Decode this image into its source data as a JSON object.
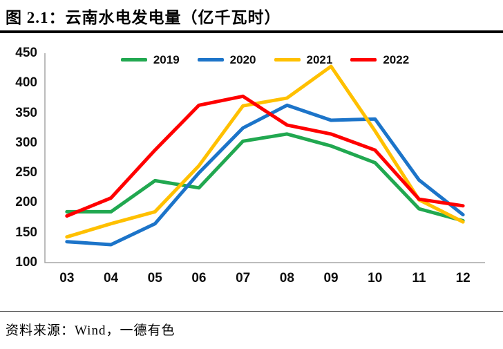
{
  "header": {
    "title": "图 2.1：云南水电发电量（亿千瓦时）"
  },
  "footer": {
    "source": "资料来源：Wind，一德有色"
  },
  "chart_data": {
    "type": "line",
    "title": "图 2.1：云南水电发电量（亿千瓦时）",
    "unit": "亿千瓦时",
    "categories": [
      "03",
      "04",
      "05",
      "06",
      "07",
      "08",
      "09",
      "10",
      "11",
      "12"
    ],
    "ylim": [
      100,
      450
    ],
    "y_ticks": [
      450,
      400,
      350,
      300,
      250,
      200,
      150,
      100
    ],
    "grid": false,
    "legend_position": "top",
    "axis_color": "#a6a6a6",
    "series": [
      {
        "name": "2019",
        "color": "#21a850",
        "values": [
          185,
          185,
          237,
          225,
          303,
          315,
          295,
          267,
          190,
          170
        ]
      },
      {
        "name": "2020",
        "color": "#1c74c9",
        "values": [
          135,
          130,
          165,
          250,
          325,
          363,
          338,
          340,
          238,
          180
        ]
      },
      {
        "name": "2021",
        "color": "#ffc000",
        "values": [
          143,
          165,
          185,
          262,
          362,
          375,
          428,
          320,
          205,
          168
        ]
      },
      {
        "name": "2022",
        "color": "#ff0000",
        "values": [
          178,
          208,
          288,
          363,
          378,
          330,
          315,
          288,
          206,
          195
        ]
      }
    ]
  }
}
